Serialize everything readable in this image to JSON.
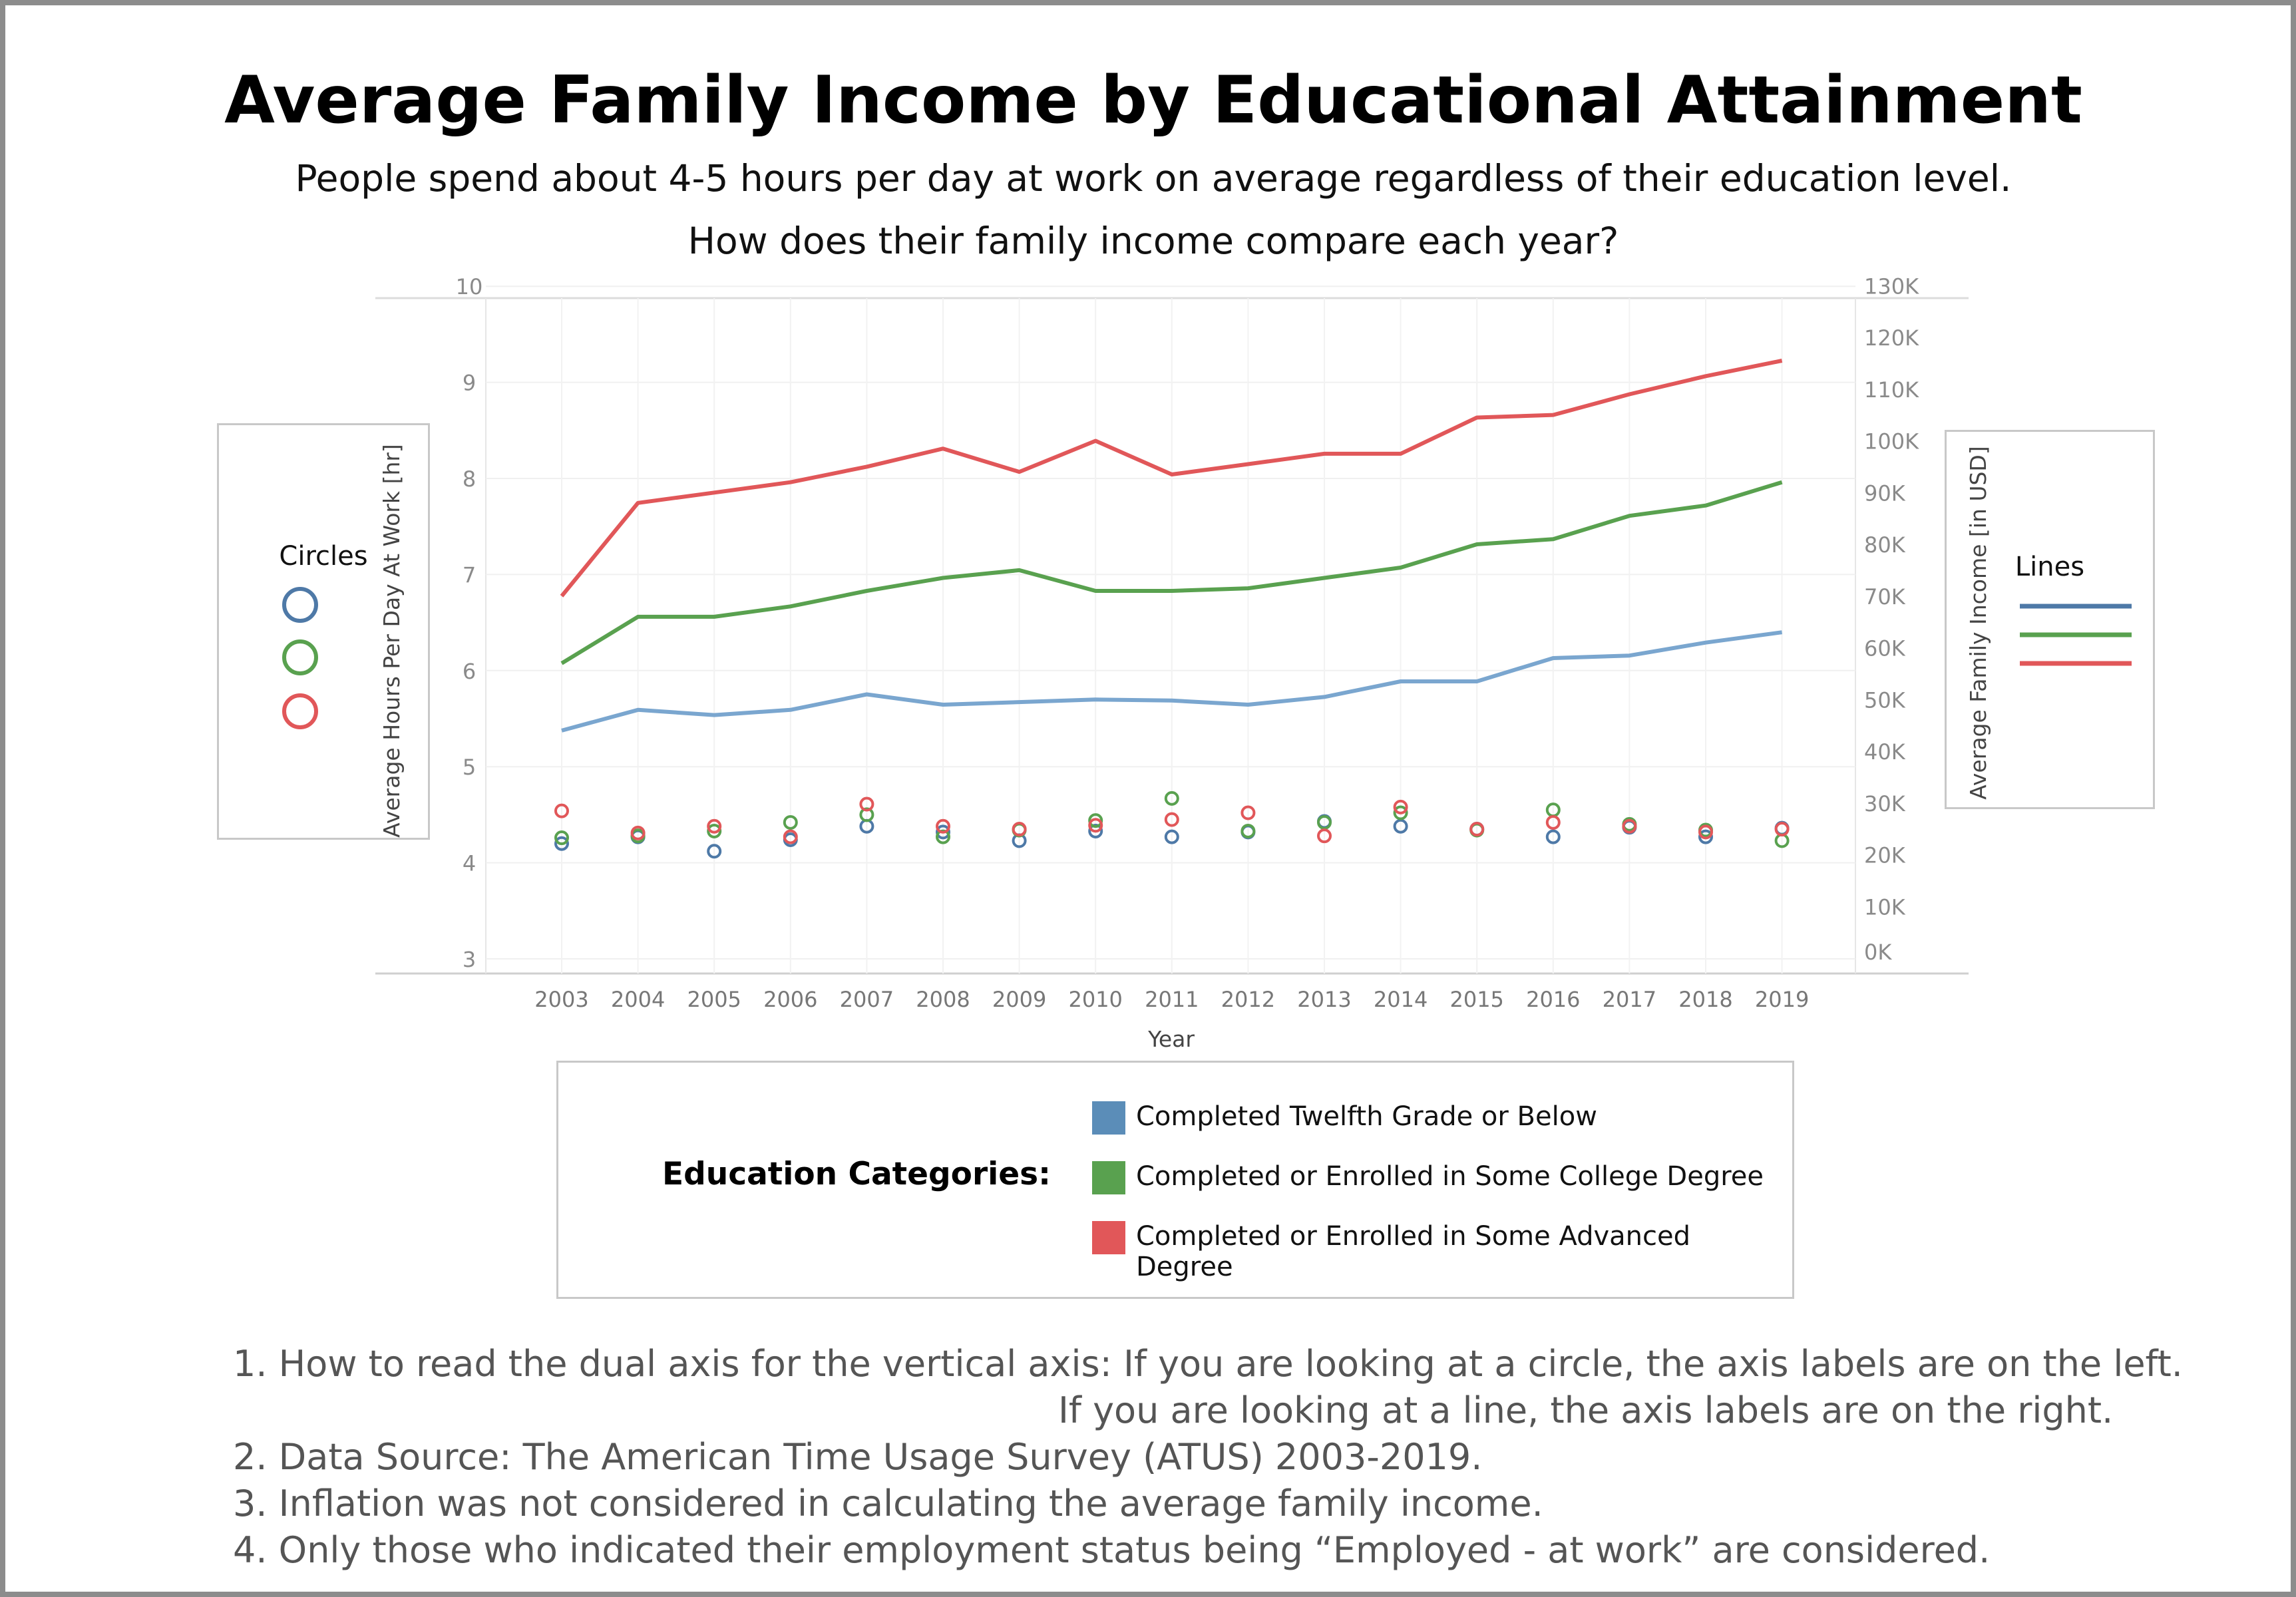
{
  "title": "Average Family Income by Educational Attainment",
  "subtitle_1": "People spend about 4-5 hours per day at work on average regardless of their education level.",
  "subtitle_2": "How does their family income compare each year?",
  "legend_circles": {
    "title": "Circles"
  },
  "legend_lines": {
    "title": "Lines"
  },
  "education_legend": {
    "title": "Education Categories:",
    "items": [
      {
        "label": "Completed Twelfth Grade or Below",
        "color": "#5b8db8"
      },
      {
        "label": "Completed or Enrolled in Some College Degree",
        "color": "#59a14f"
      },
      {
        "label": "Completed or Enrolled in Some Advanced Degree",
        "color": "#e15759"
      }
    ]
  },
  "notes": [
    "1. How to read the dual axis for the vertical axis: If you are looking at a circle, the axis labels are on the left.",
    "If you are looking at a line, the axis labels are on the right.",
    "2. Data Source: The American Time Usage Survey (ATUS) 2003-2019.",
    "3. Inflation was not considered in calculating the average family income.",
    "4. Only those who indicated their employment status being “Employed - at work” are considered."
  ],
  "chart_data": {
    "type": "line",
    "x": [
      2003,
      2004,
      2005,
      2006,
      2007,
      2008,
      2009,
      2010,
      2011,
      2012,
      2013,
      2014,
      2015,
      2016,
      2017,
      2018,
      2019
    ],
    "xlabel": "Year",
    "ylabel_left": "Average Hours Per Day At Work [hr]",
    "ylabel_right": "Average Family Income [in USD]",
    "ylim_left": [
      3,
      10
    ],
    "ylim_right": [
      0,
      130000
    ],
    "yticks_left": [
      "3",
      "4",
      "5",
      "6",
      "7",
      "8",
      "9",
      "10"
    ],
    "yticks_right": [
      "0K",
      "10K",
      "20K",
      "30K",
      "40K",
      "50K",
      "60K",
      "70K",
      "80K",
      "90K",
      "100K",
      "110K",
      "120K",
      "130K"
    ],
    "grid": true,
    "line_series": [
      {
        "color": "#7aa6cf",
        "values": [
          44000,
          48000,
          47000,
          48000,
          51000,
          49000,
          49500,
          50000,
          49800,
          49000,
          50500,
          53500,
          53500,
          58000,
          58500,
          61000,
          63000
        ]
      },
      {
        "color": "#59a14f",
        "values": [
          57000,
          66000,
          66000,
          68000,
          71000,
          73500,
          75000,
          71000,
          71000,
          71500,
          73500,
          75500,
          80000,
          81000,
          85500,
          87500,
          92000
        ]
      },
      {
        "color": "#e15759",
        "values": [
          70000,
          88000,
          90000,
          92000,
          95000,
          98500,
          94000,
          100000,
          93500,
          95500,
          97500,
          97500,
          104500,
          105000,
          109000,
          112500,
          115500
        ]
      }
    ],
    "circle_series": [
      {
        "color": "#4e79a7",
        "values": [
          4.2,
          4.27,
          4.12,
          4.24,
          4.38,
          4.32,
          4.23,
          4.33,
          4.27,
          4.32,
          4.43,
          4.38,
          4.35,
          4.27,
          4.37,
          4.27,
          4.36
        ]
      },
      {
        "color": "#59a14f",
        "values": [
          4.26,
          4.28,
          4.33,
          4.42,
          4.5,
          4.27,
          4.34,
          4.44,
          4.67,
          4.33,
          4.42,
          4.52,
          4.34,
          4.55,
          4.4,
          4.34,
          4.23
        ]
      },
      {
        "color": "#e15759",
        "values": [
          4.54,
          4.31,
          4.38,
          4.27,
          4.61,
          4.38,
          4.35,
          4.39,
          4.45,
          4.52,
          4.28,
          4.58,
          4.35,
          4.42,
          4.38,
          4.32,
          4.35
        ]
      }
    ]
  }
}
